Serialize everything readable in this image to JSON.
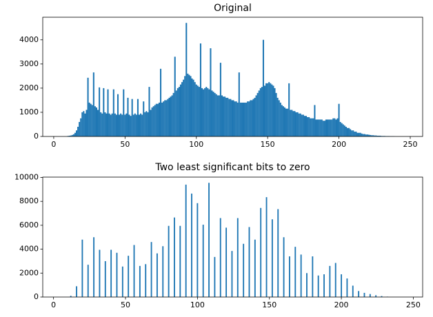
{
  "chart_data": [
    {
      "type": "bar",
      "title": "Original",
      "color": "#1f77b4",
      "x": [
        10,
        11,
        12,
        13,
        14,
        15,
        16,
        17,
        18,
        19,
        20,
        21,
        22,
        23,
        24,
        25,
        26,
        27,
        28,
        29,
        30,
        31,
        32,
        33,
        34,
        35,
        36,
        37,
        38,
        39,
        40,
        41,
        42,
        43,
        44,
        45,
        46,
        47,
        48,
        49,
        50,
        51,
        52,
        53,
        54,
        55,
        56,
        57,
        58,
        59,
        60,
        61,
        62,
        63,
        64,
        65,
        66,
        67,
        68,
        69,
        70,
        71,
        72,
        73,
        74,
        75,
        76,
        77,
        78,
        79,
        80,
        81,
        82,
        83,
        84,
        85,
        86,
        87,
        88,
        89,
        90,
        91,
        92,
        93,
        94,
        95,
        96,
        97,
        98,
        99,
        100,
        101,
        102,
        103,
        104,
        105,
        106,
        107,
        108,
        109,
        110,
        111,
        112,
        113,
        114,
        115,
        116,
        117,
        118,
        119,
        120,
        121,
        122,
        123,
        124,
        125,
        126,
        127,
        128,
        129,
        130,
        131,
        132,
        133,
        134,
        135,
        136,
        137,
        138,
        139,
        140,
        141,
        142,
        143,
        144,
        145,
        146,
        147,
        148,
        149,
        150,
        151,
        152,
        153,
        154,
        155,
        156,
        157,
        158,
        159,
        160,
        161,
        162,
        163,
        164,
        165,
        166,
        167,
        168,
        169,
        170,
        171,
        172,
        173,
        174,
        175,
        176,
        177,
        178,
        179,
        180,
        181,
        182,
        183,
        184,
        185,
        186,
        187,
        188,
        189,
        190,
        191,
        192,
        193,
        194,
        195,
        196,
        197,
        198,
        199,
        200,
        201,
        202,
        203,
        204,
        205,
        206,
        207,
        208,
        209,
        210,
        211,
        212,
        213,
        214,
        215,
        216,
        217,
        218,
        219,
        220,
        221,
        222,
        223,
        224,
        225,
        226,
        227,
        228,
        229,
        230,
        231,
        232,
        233,
        234,
        235,
        236,
        237,
        238,
        239
      ],
      "values": [
        20,
        30,
        40,
        60,
        90,
        150,
        250,
        400,
        600,
        750,
        1000,
        1050,
        950,
        1100,
        2430,
        1400,
        1350,
        1300,
        2650,
        1250,
        1200,
        1100,
        2030,
        1000,
        950,
        2000,
        1000,
        950,
        1950,
        950,
        900,
        950,
        1950,
        950,
        900,
        1750,
        900,
        950,
        900,
        1950,
        900,
        950,
        1600,
        900,
        850,
        1550,
        900,
        950,
        900,
        1550,
        900,
        950,
        900,
        1450,
        1000,
        1050,
        1000,
        2050,
        1100,
        1200,
        1250,
        1300,
        1350,
        1350,
        1400,
        2800,
        1400,
        1450,
        1500,
        1500,
        1550,
        1600,
        1650,
        1700,
        1800,
        3300,
        1900,
        2000,
        2050,
        2150,
        2250,
        2350,
        2500,
        4700,
        2600,
        2550,
        2500,
        2400,
        2350,
        2250,
        2150,
        2100,
        2050,
        3850,
        2000,
        1950,
        2000,
        2050,
        2000,
        1950,
        3650,
        1900,
        1850,
        1800,
        1750,
        1700,
        1700,
        3050,
        1700,
        1650,
        1650,
        1600,
        1600,
        1550,
        1550,
        1500,
        1500,
        1450,
        1450,
        1400,
        2650,
        1400,
        1400,
        1400,
        1400,
        1400,
        1450,
        1450,
        1500,
        1500,
        1550,
        1600,
        1700,
        1800,
        1900,
        2000,
        2050,
        4000,
        2100,
        2200,
        2200,
        2250,
        2200,
        2150,
        2100,
        2000,
        1800,
        1600,
        1500,
        1400,
        1300,
        1250,
        1200,
        1150,
        1150,
        2200,
        1100,
        1100,
        1050,
        1050,
        1000,
        1000,
        950,
        950,
        900,
        900,
        850,
        850,
        800,
        800,
        750,
        750,
        750,
        1300,
        700,
        700,
        700,
        700,
        700,
        650,
        650,
        700,
        700,
        700,
        700,
        700,
        750,
        750,
        700,
        750,
        1350,
        600,
        550,
        500,
        450,
        400,
        350,
        350,
        300,
        250,
        250,
        200,
        200,
        150,
        150,
        150,
        120,
        100,
        100,
        80,
        80,
        70,
        60,
        50,
        50,
        40,
        40,
        30,
        30,
        30,
        20,
        20,
        20,
        15,
        15,
        15,
        10,
        10,
        10,
        5
      ],
      "xlim": [
        -7.7,
        258.7
      ],
      "ylim": [
        0,
        4935
      ],
      "xticks": [
        0,
        50,
        100,
        150,
        200,
        250
      ],
      "yticks": [
        0,
        1000,
        2000,
        3000,
        4000
      ]
    },
    {
      "type": "bar",
      "title": "Two least significant bits to zero",
      "color": "#1f77b4",
      "x": [
        12,
        16,
        20,
        24,
        28,
        32,
        36,
        40,
        44,
        48,
        52,
        56,
        60,
        64,
        68,
        72,
        76,
        80,
        84,
        88,
        92,
        96,
        100,
        104,
        108,
        112,
        116,
        120,
        124,
        128,
        132,
        136,
        140,
        144,
        148,
        152,
        156,
        160,
        164,
        168,
        172,
        176,
        180,
        184,
        188,
        192,
        196,
        200,
        204,
        208,
        212,
        216,
        220,
        224,
        228,
        232
      ],
      "values": [
        100,
        900,
        4800,
        2700,
        5000,
        3950,
        3000,
        3950,
        3700,
        2550,
        3450,
        4350,
        2600,
        2750,
        4600,
        3650,
        4250,
        5950,
        6650,
        5950,
        9400,
        8650,
        7850,
        6050,
        9550,
        3350,
        6600,
        5800,
        3850,
        6600,
        4450,
        5850,
        4800,
        7450,
        8350,
        6500,
        7350,
        5000,
        3400,
        4200,
        3550,
        2000,
        3400,
        1800,
        1900,
        2600,
        2850,
        1900,
        1550,
        950,
        500,
        350,
        250,
        150,
        80,
        30
      ],
      "xlim": [
        -7.5,
        256.5
      ],
      "ylim": [
        0,
        10028
      ],
      "xticks": [
        0,
        50,
        100,
        150,
        200,
        250
      ],
      "yticks": [
        0,
        2000,
        4000,
        6000,
        8000,
        10000
      ]
    }
  ]
}
